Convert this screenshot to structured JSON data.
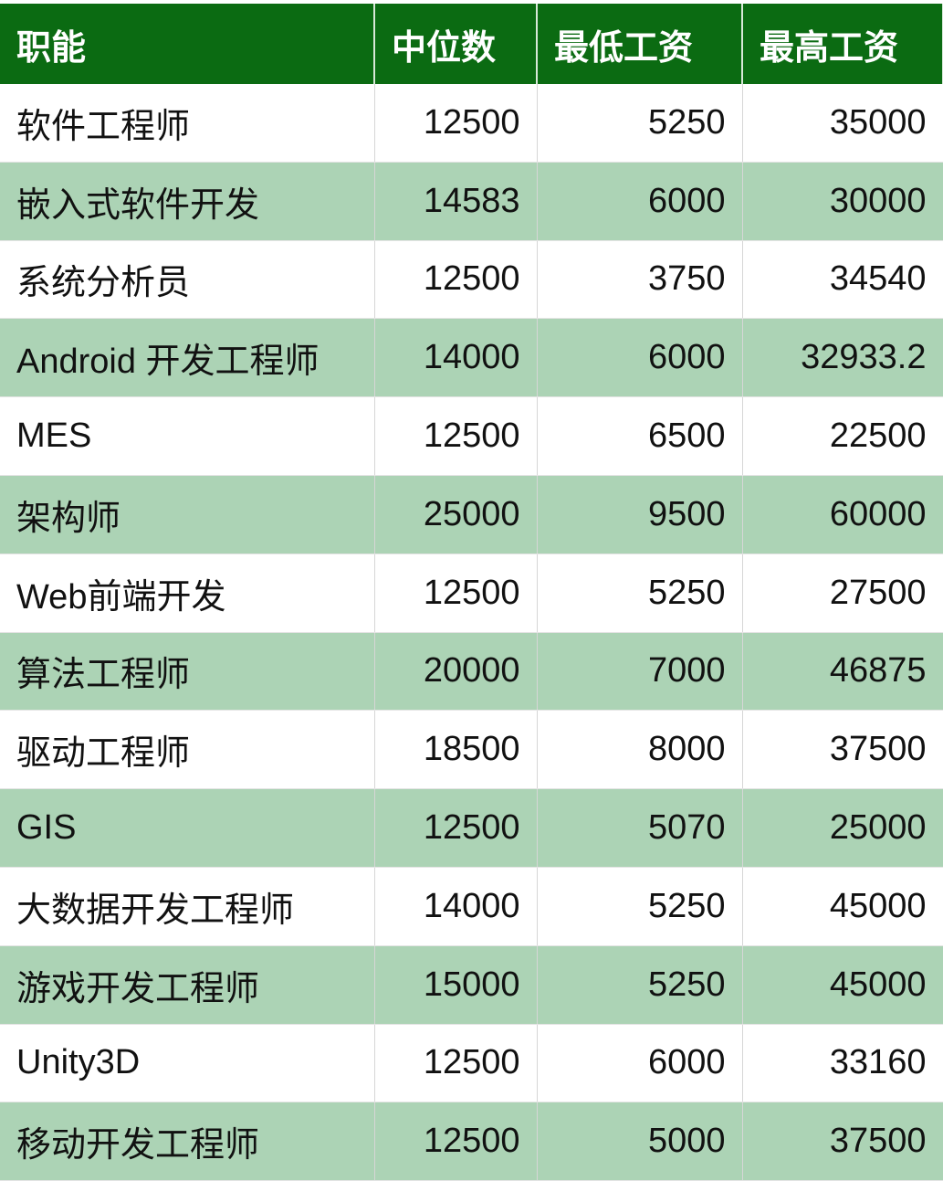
{
  "table": {
    "headers": [
      "职能",
      "中位数",
      "最低工资",
      "最高工资"
    ],
    "rows": [
      [
        "软件工程师",
        "12500",
        "5250",
        "35000"
      ],
      [
        "嵌入式软件开发",
        "14583",
        "6000",
        "30000"
      ],
      [
        "系统分析员",
        "12500",
        "3750",
        "34540"
      ],
      [
        "Android 开发工程师",
        "14000",
        "6000",
        "32933.2"
      ],
      [
        "MES",
        "12500",
        "6500",
        "22500"
      ],
      [
        "架构师",
        "25000",
        "9500",
        "60000"
      ],
      [
        "Web前端开发",
        "12500",
        "5250",
        "27500"
      ],
      [
        "算法工程师",
        "20000",
        "7000",
        "46875"
      ],
      [
        "驱动工程师",
        "18500",
        "8000",
        "37500"
      ],
      [
        "GIS",
        "12500",
        "5070",
        "25000"
      ],
      [
        "大数据开发工程师",
        "14000",
        "5250",
        "45000"
      ],
      [
        "游戏开发工程师",
        "15000",
        "5250",
        "45000"
      ],
      [
        "Unity3D",
        "12500",
        "6000",
        "33160"
      ],
      [
        "移动开发工程师",
        "12500",
        "5000",
        "37500"
      ]
    ]
  },
  "colors": {
    "header_bg": "#0b6b12",
    "band_bg": "#acd3b5"
  }
}
